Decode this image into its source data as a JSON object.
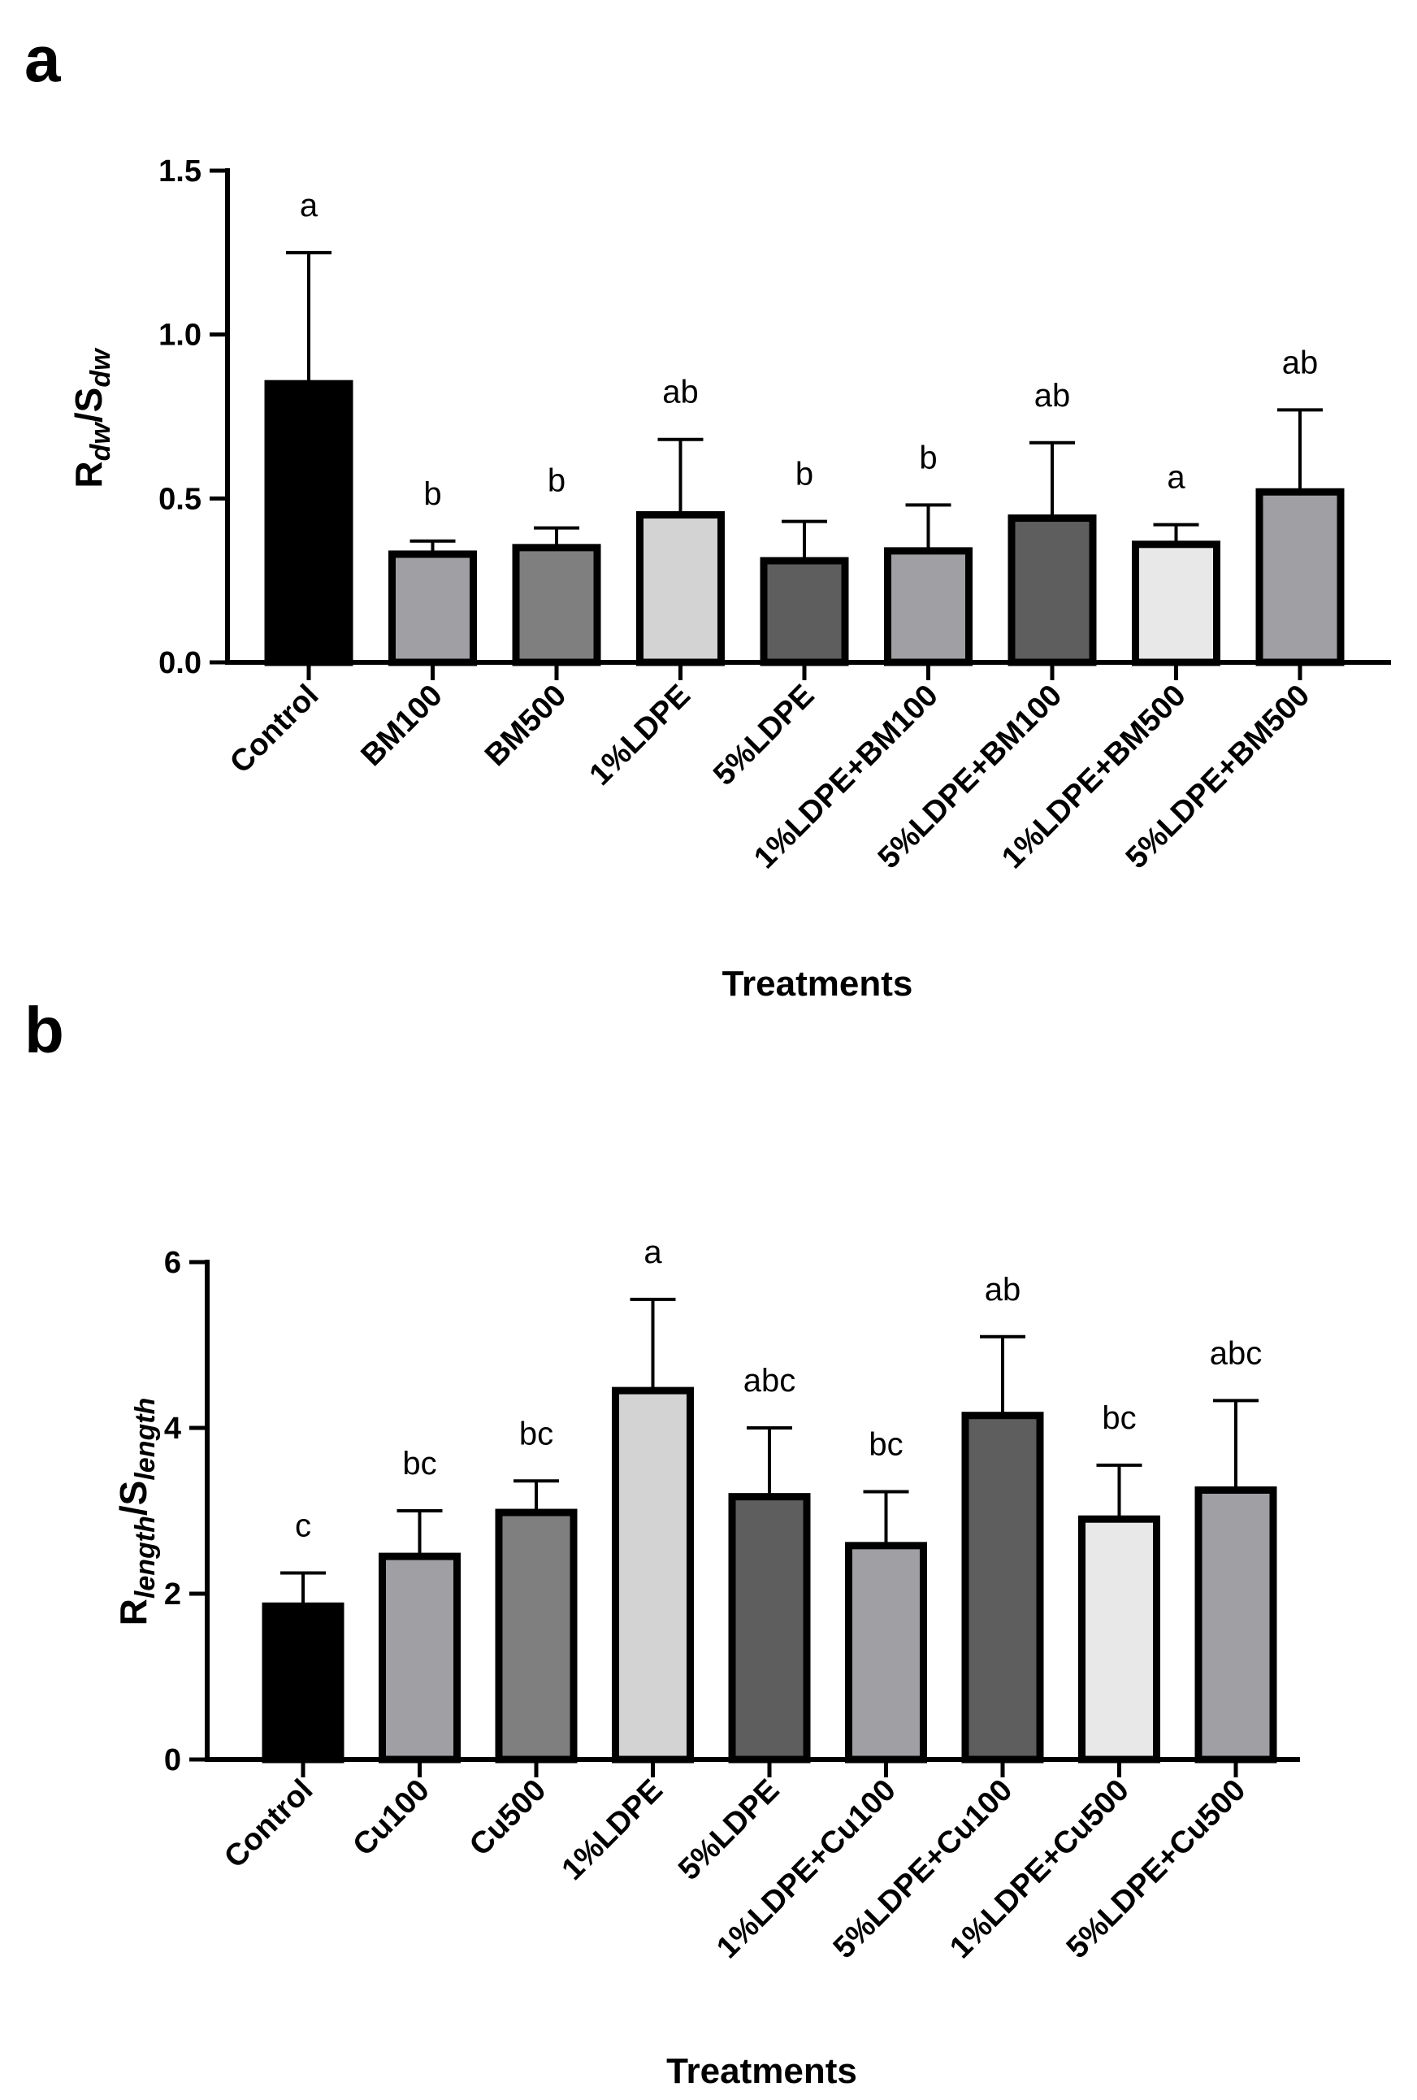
{
  "chart_data": [
    {
      "panel": "a",
      "type": "bar",
      "xlabel": "Treatments",
      "ylabel": {
        "main": "R",
        "sub1": "dw",
        "sep": "/S",
        "sub2": "dw"
      },
      "ylim": [
        0,
        1.5
      ],
      "yticks": [
        "0.0",
        "0.5",
        "1.0",
        "1.5"
      ],
      "ytick_values": [
        0,
        0.5,
        1.0,
        1.5
      ],
      "categories": [
        "Control",
        "BM100",
        "BM500",
        "1%LDPE",
        "5%LDPE",
        "1%LDPE+BM100",
        "5%LDPE+BM100",
        "1%LDPE+BM500",
        "5%LDPE+BM500"
      ],
      "values": [
        0.85,
        0.33,
        0.35,
        0.45,
        0.31,
        0.34,
        0.44,
        0.36,
        0.52
      ],
      "errors": [
        0.4,
        0.04,
        0.06,
        0.23,
        0.12,
        0.14,
        0.23,
        0.06,
        0.25
      ],
      "labels": [
        "a",
        "b",
        "b",
        "ab",
        "b",
        "b",
        "ab",
        "a",
        "ab"
      ],
      "colors": [
        "#000000",
        "#a0a0a4",
        "#7f7f7f",
        "#d3d3d3",
        "#5e5e5e",
        "#a0a0a4",
        "#5e5e5e",
        "#e8e8e8",
        "#a0a0a4"
      ],
      "grid": false
    },
    {
      "panel": "b",
      "type": "bar",
      "xlabel": "Treatments",
      "ylabel": {
        "main": "R",
        "sub1": "length",
        "sep": "/S",
        "sub2": "length"
      },
      "ylim": [
        0,
        6
      ],
      "yticks": [
        "0",
        "2",
        "4",
        "6"
      ],
      "ytick_values": [
        0,
        2,
        4,
        6
      ],
      "categories": [
        "Control",
        "Cu100",
        "Cu500",
        "1%LDPE",
        "5%LDPE",
        "1%LDPE+Cu100",
        "5%LDPE+Cu100",
        "1%LDPE+Cu500",
        "5%LDPE+Cu500"
      ],
      "values": [
        1.85,
        2.45,
        2.98,
        4.45,
        3.17,
        2.58,
        4.15,
        2.9,
        3.25
      ],
      "errors": [
        0.4,
        0.55,
        0.38,
        1.1,
        0.83,
        0.65,
        0.95,
        0.65,
        1.08
      ],
      "labels": [
        "c",
        "bc",
        "bc",
        "a",
        "abc",
        "bc",
        "ab",
        "bc",
        "abc"
      ],
      "colors": [
        "#000000",
        "#a0a0a4",
        "#7f7f7f",
        "#d3d3d3",
        "#5e5e5e",
        "#a0a0a4",
        "#5e5e5e",
        "#e8e8e8",
        "#a0a0a4"
      ],
      "grid": false
    }
  ]
}
